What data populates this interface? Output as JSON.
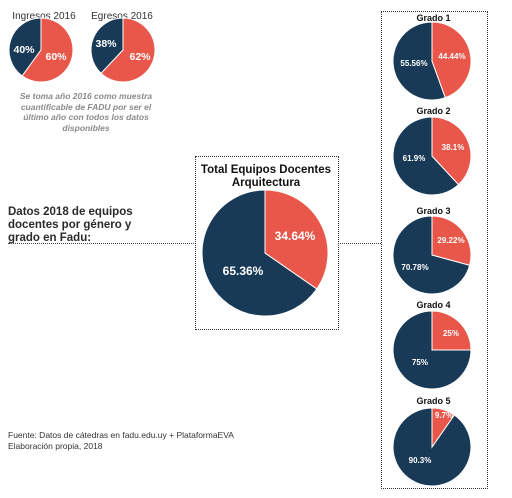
{
  "colors": {
    "navy": "#183a57",
    "coral": "#e8574a",
    "label_on_coral": "#ffffff",
    "label_on_navy": "#ffffff"
  },
  "top_note": "Se toma año 2016 como muestra cuantificable de FADU por ser el último año con todos los datos disponibles",
  "heading": "Datos 2018 de equipos docentes por género y grado en Fadu:",
  "source_line1": "Fuente: Datos de cátedras en fadu.edu.uy + PlataformaEVA",
  "source_line2": "Elaboración propia, 2018",
  "chart_data": [
    {
      "type": "pie",
      "title": "Ingresos 2016",
      "series": [
        {
          "values": [
            40,
            60
          ],
          "labels": [
            "40%",
            "60%"
          ]
        }
      ]
    },
    {
      "type": "pie",
      "title": "Egresos 2016",
      "series": [
        {
          "values": [
            38,
            62
          ],
          "labels": [
            "38%",
            "62%"
          ]
        }
      ]
    },
    {
      "type": "pie",
      "title": "Total Equipos Docentes Arquitectura",
      "series": [
        {
          "values": [
            65.36,
            34.64
          ],
          "labels": [
            "65.36%",
            "34.64%"
          ]
        }
      ]
    },
    {
      "type": "pie",
      "title": "Grado 1",
      "series": [
        {
          "values": [
            55.56,
            44.44
          ],
          "labels": [
            "55.56%",
            "44.44%"
          ]
        }
      ]
    },
    {
      "type": "pie",
      "title": "Grado 2",
      "series": [
        {
          "values": [
            61.9,
            38.1
          ],
          "labels": [
            "61.9%",
            "38.1%"
          ]
        }
      ]
    },
    {
      "type": "pie",
      "title": "Grado 3",
      "series": [
        {
          "values": [
            70.78,
            29.22
          ],
          "labels": [
            "70.78%",
            "29.22%"
          ]
        }
      ]
    },
    {
      "type": "pie",
      "title": "Grado 4",
      "series": [
        {
          "values": [
            75,
            25
          ],
          "labels": [
            "75%",
            "25%"
          ]
        }
      ]
    },
    {
      "type": "pie",
      "title": "Grado 5",
      "series": [
        {
          "values": [
            90.3,
            9.7
          ],
          "labels": [
            "90.3%",
            "9.7%"
          ]
        }
      ]
    }
  ]
}
